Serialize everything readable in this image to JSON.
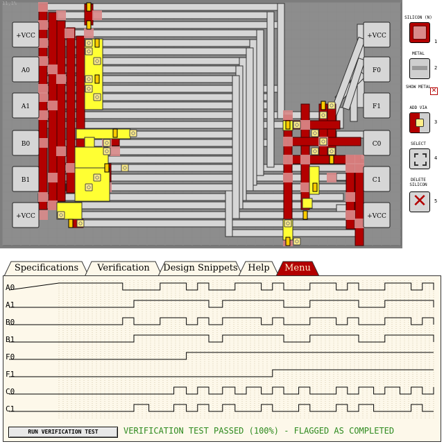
{
  "board": {
    "coords": "11,1%",
    "pins": [
      {
        "label": "+VCC",
        "side": "left",
        "row": 0
      },
      {
        "label": "A0",
        "side": "left",
        "row": 1
      },
      {
        "label": "A1",
        "side": "left",
        "row": 2
      },
      {
        "label": "B0",
        "side": "left",
        "row": 3
      },
      {
        "label": "B1",
        "side": "left",
        "row": 4
      },
      {
        "label": "+VCC",
        "side": "left",
        "row": 5
      },
      {
        "label": "+VCC",
        "side": "right",
        "row": 0
      },
      {
        "label": "F0",
        "side": "right",
        "row": 1
      },
      {
        "label": "F1",
        "side": "right",
        "row": 2
      },
      {
        "label": "C0",
        "side": "right",
        "row": 3
      },
      {
        "label": "C1",
        "side": "right",
        "row": 4
      },
      {
        "label": "+VCC",
        "side": "right",
        "row": 5
      }
    ]
  },
  "palette": [
    {
      "label": "SILICON (N)",
      "key": "1",
      "icon": "silicon-n-swatch"
    },
    {
      "label": "METAL",
      "key": "2",
      "icon": "metal-swatch"
    },
    {
      "label": "SHOW METAL",
      "key": "",
      "icon": "show-metal-checkbox"
    },
    {
      "label": "ADD VIA",
      "key": "3",
      "icon": "via-swatch"
    },
    {
      "label": "SELECT",
      "key": "4",
      "icon": "select-icon"
    },
    {
      "label": "DELETE SILICON",
      "key": "5",
      "icon": "delete-icon"
    }
  ],
  "tabs": [
    {
      "label": "Specifications",
      "active": false
    },
    {
      "label": "Verification",
      "active": true
    },
    {
      "label": "Design Snippets",
      "active": false
    },
    {
      "label": "Help",
      "active": false
    },
    {
      "label": "Menu",
      "active": false,
      "accent": true
    }
  ],
  "verification": {
    "signals": [
      {
        "label": "A0",
        "edges": [
          [
            0,
            1
          ],
          [
            84,
            1
          ],
          [
            102,
            0
          ],
          [
            162,
            1
          ],
          [
            204,
            0
          ],
          [
            222,
            1
          ],
          [
            240,
            0
          ],
          [
            282,
            1
          ],
          [
            324,
            0
          ],
          [
            342,
            1
          ],
          [
            360,
            0
          ],
          [
            402,
            1
          ],
          [
            444,
            0
          ],
          [
            462,
            1
          ],
          [
            480,
            0
          ],
          [
            522,
            1
          ],
          [
            564,
            0
          ],
          [
            582,
            1
          ],
          [
            600,
            0
          ]
        ]
      },
      {
        "label": "A1",
        "edges": [
          [
            0,
            0
          ],
          [
            120,
            1
          ],
          [
            240,
            0
          ],
          [
            262,
            1
          ],
          [
            360,
            0
          ],
          [
            402,
            1
          ],
          [
            480,
            0
          ],
          [
            522,
            1
          ],
          [
            600,
            0
          ]
        ]
      },
      {
        "label": "B0",
        "edges": [
          [
            0,
            0
          ],
          [
            102,
            1
          ],
          [
            120,
            0
          ],
          [
            162,
            1
          ],
          [
            204,
            0
          ],
          [
            222,
            1
          ],
          [
            240,
            0
          ],
          [
            262,
            1
          ],
          [
            324,
            0
          ],
          [
            342,
            1
          ],
          [
            360,
            0
          ],
          [
            402,
            1
          ],
          [
            444,
            0
          ],
          [
            462,
            1
          ],
          [
            480,
            0
          ],
          [
            522,
            1
          ],
          [
            564,
            0
          ],
          [
            582,
            1
          ],
          [
            600,
            0
          ]
        ]
      },
      {
        "label": "B1",
        "edges": [
          [
            0,
            0
          ],
          [
            120,
            1
          ],
          [
            240,
            0
          ],
          [
            262,
            1
          ],
          [
            360,
            0
          ],
          [
            402,
            1
          ],
          [
            480,
            0
          ],
          [
            522,
            1
          ],
          [
            600,
            0
          ]
        ]
      },
      {
        "label": "F0",
        "edges": [
          [
            0,
            0
          ],
          [
            204,
            1
          ],
          [
            600,
            1
          ]
        ]
      },
      {
        "label": "F1",
        "edges": [
          [
            0,
            0
          ],
          [
            342,
            1
          ],
          [
            600,
            1
          ]
        ]
      },
      {
        "label": "C0",
        "edges": [
          [
            0,
            0
          ],
          [
            184,
            1
          ],
          [
            204,
            0
          ],
          [
            222,
            1
          ],
          [
            240,
            0
          ],
          [
            262,
            1
          ],
          [
            282,
            0
          ],
          [
            300,
            1
          ],
          [
            324,
            0
          ],
          [
            342,
            1
          ],
          [
            360,
            0
          ],
          [
            384,
            1
          ],
          [
            402,
            0
          ],
          [
            444,
            1
          ],
          [
            462,
            0
          ],
          [
            480,
            1
          ],
          [
            504,
            0
          ],
          [
            522,
            1
          ],
          [
            546,
            0
          ],
          [
            564,
            1
          ],
          [
            582,
            0
          ],
          [
            600,
            1
          ]
        ]
      },
      {
        "label": "C1",
        "edges": [
          [
            0,
            0
          ],
          [
            120,
            1
          ],
          [
            144,
            0
          ],
          [
            184,
            1
          ],
          [
            204,
            0
          ],
          [
            222,
            1
          ],
          [
            240,
            0
          ],
          [
            262,
            1
          ],
          [
            282,
            0
          ],
          [
            324,
            1
          ],
          [
            342,
            0
          ],
          [
            384,
            1
          ],
          [
            402,
            0
          ],
          [
            444,
            1
          ],
          [
            462,
            0
          ],
          [
            480,
            1
          ],
          [
            504,
            0
          ],
          [
            564,
            1
          ],
          [
            582,
            0
          ],
          [
            600,
            0
          ]
        ]
      }
    ],
    "run_button": "RUN VERIFICATION TEST",
    "status": "VERIFICATION TEST PASSED (100%) - FLAGGED AS COMPLETED"
  },
  "colors": {
    "board_bg": "#7d7d7d",
    "grid": "#8a8a8a",
    "silicon": "#b30000",
    "silicon_light": "#d98a8a",
    "metal": "#d6d6d6",
    "metal_edge": "#5a5a5a",
    "poly": "#ffff33",
    "via": "#ffee88",
    "status": "#2d8a1e",
    "menu_tab": "#b30000",
    "panel_bg": "#fdf8ea"
  }
}
